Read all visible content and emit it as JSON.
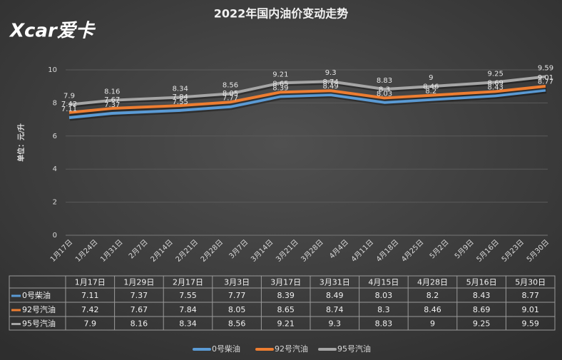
{
  "chart_data": {
    "type": "line",
    "title": "2022年国内油价变动走势",
    "logo": "Xcar爱卡",
    "ylabel": "单位：元/升",
    "x": [
      "1月17日",
      "1月29日",
      "2月17日",
      "3月3日",
      "3月17日",
      "3月31日",
      "4月15日",
      "4月28日",
      "5月16日",
      "5月30日"
    ],
    "xticks": [
      "1月17日",
      "1月24日",
      "1月31日",
      "2月7日",
      "2月14日",
      "2月21日",
      "2月28日",
      "3月7日",
      "3月14日",
      "3月21日",
      "3月28日",
      "4月4日",
      "4月11日",
      "4月18日",
      "4月25日",
      "5月2日",
      "5月9日",
      "5月16日",
      "5月23日",
      "5月30日"
    ],
    "ylim": [
      0,
      10
    ],
    "yticks": [
      0,
      2,
      4,
      6,
      8,
      10
    ],
    "grid": true,
    "legend": "bottom",
    "series": [
      {
        "name": "0号柴油",
        "color": "#5b9bd5",
        "values": [
          7.11,
          7.37,
          7.55,
          7.77,
          8.39,
          8.49,
          8.03,
          8.2,
          8.43,
          8.77
        ]
      },
      {
        "name": "92号汽油",
        "color": "#ed7d31",
        "values": [
          7.42,
          7.67,
          7.84,
          8.05,
          8.65,
          8.74,
          8.3,
          8.46,
          8.69,
          9.01
        ]
      },
      {
        "name": "95号汽油",
        "color": "#a5a5a5",
        "values": [
          7.9,
          8.16,
          8.34,
          8.56,
          9.21,
          9.3,
          8.83,
          9,
          9.25,
          9.59
        ]
      }
    ]
  }
}
